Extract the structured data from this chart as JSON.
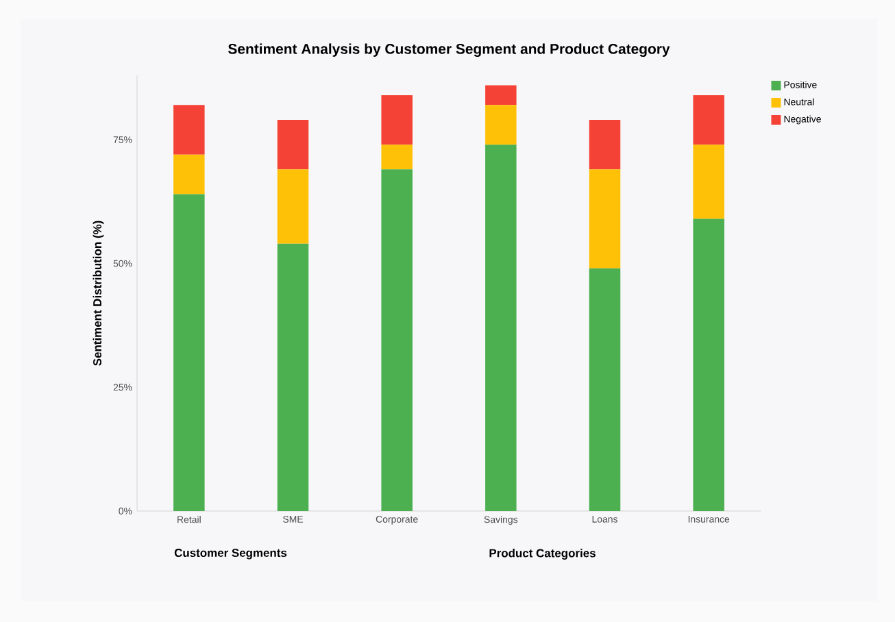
{
  "chart_data": {
    "type": "bar",
    "stacked": true,
    "title": "Sentiment Analysis by Customer Segment and Product Category",
    "ylabel": "Sentiment Distribution (%)",
    "categories": [
      "Retail",
      "SME",
      "Corporate",
      "Savings",
      "Loans",
      "Insurance"
    ],
    "series": [
      {
        "name": "Positive",
        "color": "#4caf50",
        "values": [
          64,
          54,
          69,
          74,
          49,
          59
        ]
      },
      {
        "name": "Neutral",
        "color": "#ffc107",
        "values": [
          8,
          15,
          5,
          8,
          20,
          15
        ]
      },
      {
        "name": "Negative",
        "color": "#f44336",
        "values": [
          10,
          10,
          10,
          4,
          10,
          10
        ]
      }
    ],
    "ylim": [
      0,
      88
    ],
    "yticks": [
      {
        "value": 0,
        "label": "0%"
      },
      {
        "value": 25,
        "label": "25%"
      },
      {
        "value": 50,
        "label": "50%"
      },
      {
        "value": 75,
        "label": "75%"
      }
    ],
    "legend": "top right",
    "annotations": [
      "Customer Segments",
      "Product Categories"
    ]
  }
}
